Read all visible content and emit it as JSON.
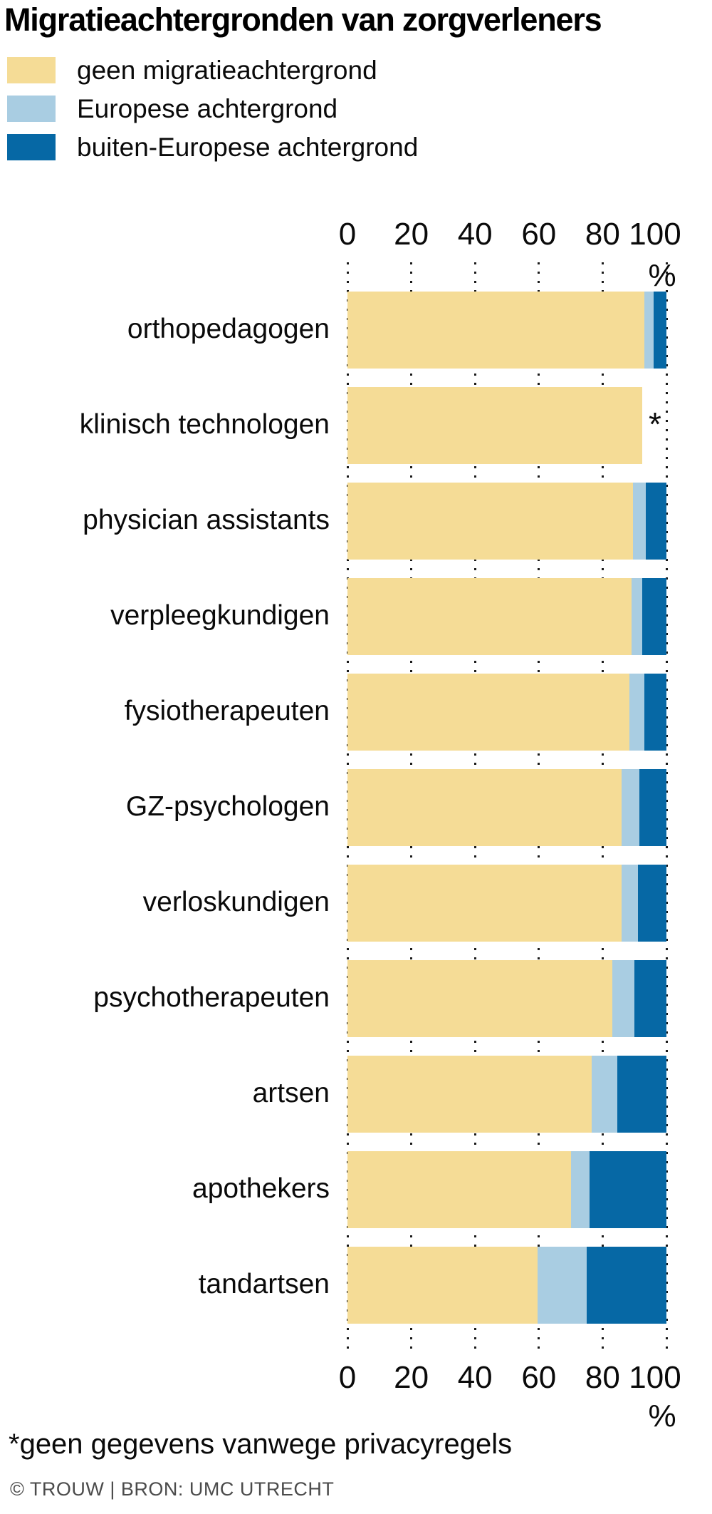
{
  "title": "Migratieachtergronden van zorgverleners",
  "legend": [
    {
      "label": "geen migratieachtergrond",
      "color": "#F5DC96"
    },
    {
      "label": "Europese achtergrond",
      "color": "#A9CDE2"
    },
    {
      "label": "buiten-Europese achtergrond",
      "color": "#0668A5"
    }
  ],
  "colors": {
    "geen_migratieachtergrond": "#F5DC96",
    "europese_achtergrond": "#A9CDE2",
    "buiten_europese_achtergrond": "#0668A5",
    "text": "#0a0a0a",
    "source_text": "#4b4b4b",
    "grid_dots": "#1b1b1b"
  },
  "chart_data": {
    "type": "bar",
    "orientation": "horizontal-stacked",
    "title": "Migratieachtergronden van zorgverleners",
    "xlabel": "%",
    "ylabel": "",
    "xlim": [
      0,
      100
    ],
    "axis_ticks": [
      0,
      20,
      40,
      60,
      80,
      100
    ],
    "axis_unit": "%",
    "grid": "dotted-vertical",
    "legend_position": "top-left",
    "series_names": [
      "geen migratieachtergrond",
      "Europese achtergrond",
      "buiten-Europese achtergrond"
    ],
    "rows": [
      {
        "label": "orthopedagogen",
        "values": [
          93,
          3,
          4
        ]
      },
      {
        "label": "klinisch technologen",
        "values": [
          92.5,
          null,
          null
        ],
        "note": "*"
      },
      {
        "label": "physician assistants",
        "values": [
          89.5,
          4,
          6.5
        ]
      },
      {
        "label": "verpleegkundigen",
        "values": [
          89,
          3.5,
          7.5
        ]
      },
      {
        "label": "fysiotherapeuten",
        "values": [
          88.5,
          4.5,
          7
        ]
      },
      {
        "label": "GZ-psychologen",
        "values": [
          86,
          5.5,
          8.5
        ]
      },
      {
        "label": "verloskundigen",
        "values": [
          86,
          5,
          9
        ]
      },
      {
        "label": "psychotherapeuten",
        "values": [
          83,
          7,
          10
        ]
      },
      {
        "label": "artsen",
        "values": [
          76.5,
          8,
          15.5
        ]
      },
      {
        "label": "apothekers",
        "values": [
          70,
          6,
          24
        ]
      },
      {
        "label": "tandartsen",
        "values": [
          59.5,
          15.5,
          25
        ]
      }
    ]
  },
  "footnote": "*geen gegevens vanwege privacyregels",
  "source": "© TROUW | BRON: UMC UTRECHT"
}
